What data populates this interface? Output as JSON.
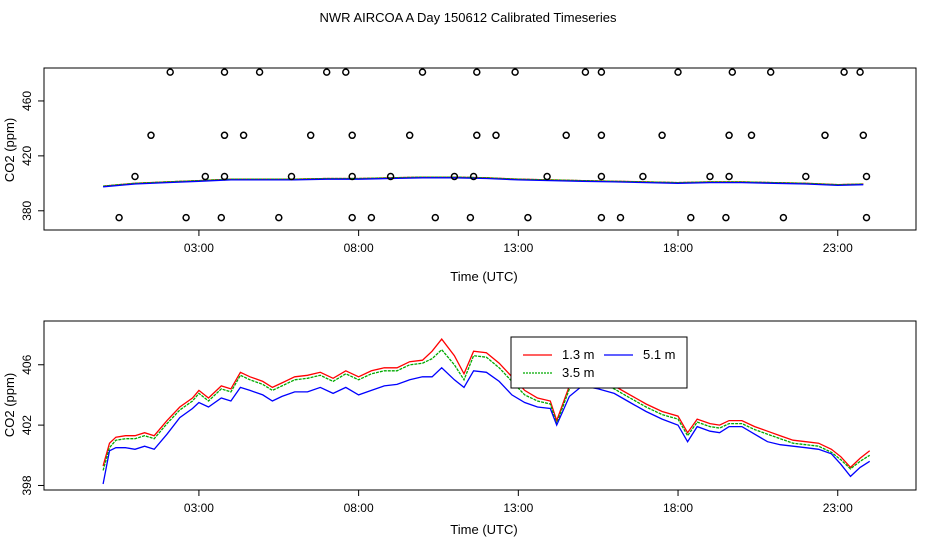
{
  "figure": {
    "title": "NWR AIRCOA A  Day 150612  Calibrated Timeseries"
  },
  "chart_data": [
    {
      "type": "line+scatter",
      "title": "",
      "xlabel": "Time (UTC)",
      "ylabel": "CO2 (ppm)",
      "xlim": [
        -1.85,
        25.45
      ],
      "ylim": [
        366,
        484
      ],
      "x_ticks": [
        3,
        8,
        13,
        18,
        23
      ],
      "x_tick_labels": [
        "03:00",
        "08:00",
        "13:00",
        "18:00",
        "23:00"
      ],
      "y_ticks": [
        380,
        420,
        460
      ],
      "y_tick_labels": [
        "380",
        "420",
        "460"
      ],
      "series": [
        {
          "name": "1.3 m",
          "color": "#ff0000",
          "x": [
            0,
            1,
            2,
            3,
            4,
            5,
            6,
            7,
            8,
            9,
            10,
            11,
            12,
            13,
            14,
            15,
            16,
            17,
            18,
            19,
            20,
            21,
            22,
            23,
            23.8
          ],
          "y": [
            398,
            400,
            401,
            402,
            403,
            403,
            403,
            403.5,
            403.5,
            404,
            404.5,
            404.5,
            404,
            403,
            402.5,
            402,
            401.5,
            401,
            400.5,
            401,
            401,
            400.5,
            400,
            399,
            399.5
          ]
        },
        {
          "name": "3.5 m",
          "color": "#00aa00",
          "x": [
            0,
            1,
            2,
            3,
            4,
            5,
            6,
            7,
            8,
            9,
            10,
            11,
            12,
            13,
            14,
            15,
            16,
            17,
            18,
            19,
            20,
            21,
            22,
            23,
            23.8
          ],
          "y": [
            398,
            400,
            401,
            402,
            403,
            403,
            403,
            403.5,
            403.5,
            404,
            404.5,
            404.5,
            404,
            403,
            402.5,
            402,
            401.5,
            401,
            400.5,
            401,
            401,
            400.5,
            400,
            399,
            399.5
          ]
        },
        {
          "name": "5.1 m",
          "color": "#0000ff",
          "x": [
            0,
            1,
            2,
            3,
            4,
            5,
            6,
            7,
            8,
            9,
            10,
            11,
            12,
            13,
            14,
            15,
            16,
            17,
            18,
            19,
            20,
            21,
            22,
            23,
            23.8
          ],
          "y": [
            397.5,
            399.5,
            400.5,
            401.5,
            402.5,
            402.5,
            402.5,
            403,
            403,
            403.5,
            404,
            404,
            403.5,
            402.5,
            402,
            401.5,
            401,
            400.5,
            400,
            400.5,
            400.5,
            400,
            399.5,
            398.5,
            399
          ]
        }
      ],
      "scatter_markers": [
        {
          "x": 0.5,
          "y": 375
        },
        {
          "x": 2.6,
          "y": 375
        },
        {
          "x": 3.7,
          "y": 375
        },
        {
          "x": 5.5,
          "y": 375
        },
        {
          "x": 7.8,
          "y": 375
        },
        {
          "x": 8.4,
          "y": 375
        },
        {
          "x": 10.4,
          "y": 375
        },
        {
          "x": 11.5,
          "y": 375
        },
        {
          "x": 13.3,
          "y": 375
        },
        {
          "x": 15.6,
          "y": 375
        },
        {
          "x": 16.2,
          "y": 375
        },
        {
          "x": 18.4,
          "y": 375
        },
        {
          "x": 19.5,
          "y": 375
        },
        {
          "x": 21.3,
          "y": 375
        },
        {
          "x": 23.9,
          "y": 375
        },
        {
          "x": 1,
          "y": 405
        },
        {
          "x": 3.2,
          "y": 405
        },
        {
          "x": 3.8,
          "y": 405
        },
        {
          "x": 5.9,
          "y": 405
        },
        {
          "x": 7.8,
          "y": 405
        },
        {
          "x": 9,
          "y": 405
        },
        {
          "x": 11,
          "y": 405
        },
        {
          "x": 11.6,
          "y": 405
        },
        {
          "x": 13.9,
          "y": 405
        },
        {
          "x": 15.6,
          "y": 405
        },
        {
          "x": 16.9,
          "y": 405
        },
        {
          "x": 19,
          "y": 405
        },
        {
          "x": 19.6,
          "y": 405
        },
        {
          "x": 22,
          "y": 405
        },
        {
          "x": 23.9,
          "y": 405
        },
        {
          "x": 1.5,
          "y": 435
        },
        {
          "x": 3.8,
          "y": 435
        },
        {
          "x": 4.4,
          "y": 435
        },
        {
          "x": 6.5,
          "y": 435
        },
        {
          "x": 7.8,
          "y": 435
        },
        {
          "x": 9.6,
          "y": 435
        },
        {
          "x": 11.7,
          "y": 435
        },
        {
          "x": 12.3,
          "y": 435
        },
        {
          "x": 14.5,
          "y": 435
        },
        {
          "x": 15.6,
          "y": 435
        },
        {
          "x": 17.5,
          "y": 435
        },
        {
          "x": 19.6,
          "y": 435
        },
        {
          "x": 20.3,
          "y": 435
        },
        {
          "x": 22.6,
          "y": 435
        },
        {
          "x": 23.8,
          "y": 435
        },
        {
          "x": 2.1,
          "y": 481
        },
        {
          "x": 3.8,
          "y": 481
        },
        {
          "x": 4.9,
          "y": 481
        },
        {
          "x": 7,
          "y": 481
        },
        {
          "x": 7.6,
          "y": 481
        },
        {
          "x": 10,
          "y": 481
        },
        {
          "x": 11.7,
          "y": 481
        },
        {
          "x": 12.9,
          "y": 481
        },
        {
          "x": 15.1,
          "y": 481
        },
        {
          "x": 15.6,
          "y": 481
        },
        {
          "x": 18,
          "y": 481
        },
        {
          "x": 19.7,
          "y": 481
        },
        {
          "x": 20.9,
          "y": 481
        },
        {
          "x": 23.2,
          "y": 481
        },
        {
          "x": 23.7,
          "y": 481
        }
      ]
    },
    {
      "type": "line",
      "title": "",
      "xlabel": "Time (UTC)",
      "ylabel": "CO2 (ppm)",
      "xlim": [
        -1.85,
        25.45
      ],
      "ylim": [
        397.7,
        408.9
      ],
      "x_ticks": [
        3,
        8,
        13,
        18,
        23
      ],
      "x_tick_labels": [
        "03:00",
        "08:00",
        "13:00",
        "18:00",
        "23:00"
      ],
      "y_ticks": [
        398,
        402,
        406
      ],
      "y_tick_labels": [
        "398",
        "402",
        "406"
      ],
      "legend": {
        "placement": "top-right"
      },
      "series": [
        {
          "name": "1.3 m",
          "color": "#ff0000",
          "x": [
            0,
            0.2,
            0.4,
            0.7,
            1,
            1.3,
            1.6,
            2,
            2.4,
            2.8,
            3,
            3.3,
            3.7,
            4,
            4.3,
            4.6,
            5,
            5.3,
            5.6,
            6,
            6.4,
            6.8,
            7.2,
            7.6,
            8,
            8.4,
            8.8,
            9.2,
            9.6,
            10,
            10.3,
            10.6,
            11,
            11.3,
            11.6,
            12,
            12.4,
            12.8,
            13.2,
            13.6,
            14,
            14.2,
            14.6,
            15,
            15.5,
            16,
            16.5,
            17,
            17.5,
            18,
            18.3,
            18.6,
            19,
            19.3,
            19.6,
            20,
            20.4,
            20.8,
            21.2,
            21.6,
            22,
            22.4,
            22.8,
            23.1,
            23.4,
            23.7,
            24
          ],
          "y": [
            399.3,
            400.8,
            401.2,
            401.3,
            401.3,
            401.5,
            401.3,
            402.3,
            403.2,
            403.8,
            404.3,
            403.8,
            404.6,
            404.4,
            405.5,
            405.2,
            404.9,
            404.5,
            404.8,
            405.2,
            405.3,
            405.5,
            405.1,
            405.6,
            405.2,
            405.6,
            405.8,
            405.8,
            406.2,
            406.3,
            406.9,
            407.7,
            406.6,
            405.4,
            406.9,
            406.8,
            406.1,
            405.2,
            404.3,
            403.8,
            403.6,
            402.3,
            404.6,
            405.3,
            405.0,
            404.6,
            404.0,
            403.4,
            402.9,
            402.6,
            401.5,
            402.4,
            402.1,
            402.0,
            402.3,
            402.3,
            401.9,
            401.6,
            401.3,
            401.0,
            400.9,
            400.8,
            400.4,
            399.9,
            399.2,
            399.8,
            400.3
          ]
        },
        {
          "name": "3.5 m",
          "color": "#00aa00",
          "x": [
            0,
            0.2,
            0.4,
            0.7,
            1,
            1.3,
            1.6,
            2,
            2.4,
            2.8,
            3,
            3.3,
            3.7,
            4,
            4.3,
            4.6,
            5,
            5.3,
            5.6,
            6,
            6.4,
            6.8,
            7.2,
            7.6,
            8,
            8.4,
            8.8,
            9.2,
            9.6,
            10,
            10.3,
            10.6,
            11,
            11.3,
            11.6,
            12,
            12.4,
            12.8,
            13.2,
            13.6,
            14,
            14.2,
            14.6,
            15,
            15.5,
            16,
            16.5,
            17,
            17.5,
            18,
            18.3,
            18.6,
            19,
            19.3,
            19.6,
            20,
            20.4,
            20.8,
            21.2,
            21.6,
            22,
            22.4,
            22.8,
            23.1,
            23.4,
            23.7,
            24
          ],
          "y": [
            399.0,
            400.5,
            401.0,
            401.1,
            401.1,
            401.3,
            401.1,
            402.1,
            403.0,
            403.6,
            404.1,
            403.6,
            404.4,
            404.2,
            405.3,
            405.0,
            404.7,
            404.3,
            404.6,
            405.0,
            405.1,
            405.3,
            404.9,
            405.4,
            405.0,
            405.4,
            405.6,
            405.6,
            406.0,
            406.1,
            406.4,
            407.0,
            406.0,
            405.0,
            406.6,
            406.5,
            405.8,
            404.9,
            404.0,
            403.6,
            403.4,
            402.1,
            404.4,
            405.1,
            404.8,
            404.4,
            403.8,
            403.2,
            402.7,
            402.4,
            401.3,
            402.2,
            401.9,
            401.8,
            402.1,
            402.1,
            401.7,
            401.4,
            401.1,
            400.8,
            400.7,
            400.6,
            400.2,
            399.7,
            399.1,
            399.6,
            400.0
          ]
        },
        {
          "name": "5.1 m",
          "color": "#0000ff",
          "x": [
            0,
            0.2,
            0.4,
            0.7,
            1,
            1.3,
            1.6,
            2,
            2.4,
            2.8,
            3,
            3.3,
            3.7,
            4,
            4.3,
            4.6,
            5,
            5.3,
            5.6,
            6,
            6.4,
            6.8,
            7.2,
            7.6,
            8,
            8.4,
            8.8,
            9.2,
            9.6,
            10,
            10.3,
            10.6,
            11,
            11.3,
            11.6,
            12,
            12.4,
            12.8,
            13.2,
            13.6,
            14,
            14.2,
            14.6,
            15,
            15.5,
            16,
            16.5,
            17,
            17.5,
            18,
            18.3,
            18.6,
            19,
            19.3,
            19.6,
            20,
            20.4,
            20.8,
            21.2,
            21.6,
            22,
            22.4,
            22.8,
            23.1,
            23.4,
            23.7,
            24
          ],
          "y": [
            398.1,
            400.3,
            400.5,
            400.5,
            400.4,
            400.6,
            400.4,
            401.4,
            402.5,
            403.1,
            403.5,
            403.2,
            403.8,
            403.6,
            404.5,
            404.3,
            404.0,
            403.6,
            403.9,
            404.2,
            404.2,
            404.5,
            404.1,
            404.5,
            404.0,
            404.3,
            404.6,
            404.7,
            405.0,
            405.2,
            405.2,
            405.8,
            405.0,
            404.5,
            405.6,
            405.5,
            404.9,
            404.0,
            403.5,
            403.2,
            403.1,
            402.0,
            403.9,
            404.6,
            404.4,
            404.1,
            403.5,
            402.9,
            402.4,
            402.0,
            400.9,
            401.9,
            401.6,
            401.5,
            401.9,
            401.9,
            401.4,
            400.9,
            400.7,
            400.6,
            400.5,
            400.4,
            400.1,
            399.4,
            398.6,
            399.2,
            399.6
          ]
        }
      ]
    }
  ]
}
